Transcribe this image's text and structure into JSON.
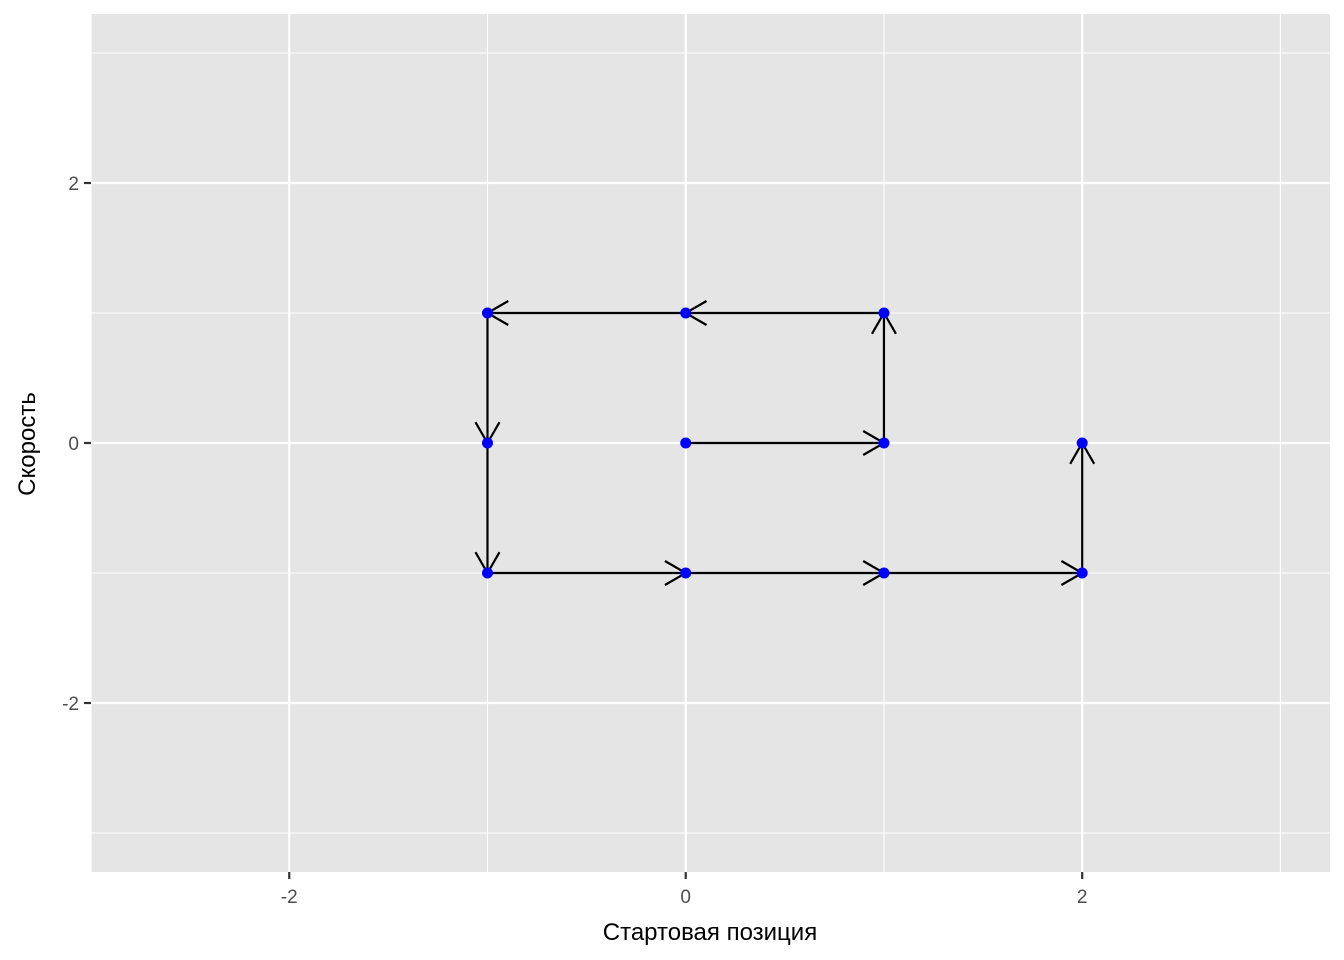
{
  "chart_data": {
    "type": "scatter",
    "title": "",
    "xlabel": "Стартовая позиция",
    "ylabel": "Скорость",
    "xlim": [
      -3.0,
      3.25
    ],
    "ylim": [
      -3.3,
      3.3
    ],
    "x_ticks": [
      -2,
      0,
      2
    ],
    "x_tick_labels": [
      "-2",
      "0",
      "2"
    ],
    "y_ticks": [
      -2,
      0,
      2
    ],
    "y_tick_labels": [
      "-2",
      "0",
      "2"
    ],
    "x_minor_ticks": [
      -3,
      -1,
      1,
      3
    ],
    "y_minor_ticks": [
      -3,
      -1,
      1,
      3
    ],
    "grid": true,
    "legend": "none",
    "points": [
      {
        "x": 0,
        "y": 0
      },
      {
        "x": 1,
        "y": 0
      },
      {
        "x": 1,
        "y": 1
      },
      {
        "x": 0,
        "y": 1
      },
      {
        "x": -1,
        "y": 1
      },
      {
        "x": -1,
        "y": 0
      },
      {
        "x": -1,
        "y": -1
      },
      {
        "x": 0,
        "y": -1
      },
      {
        "x": 1,
        "y": -1
      },
      {
        "x": 2,
        "y": -1
      },
      {
        "x": 2,
        "y": 0
      }
    ],
    "arrows": [
      {
        "from": [
          0,
          0
        ],
        "to": [
          1,
          0
        ]
      },
      {
        "from": [
          1,
          0
        ],
        "to": [
          1,
          1
        ]
      },
      {
        "from": [
          1,
          1
        ],
        "to": [
          0,
          1
        ]
      },
      {
        "from": [
          0,
          1
        ],
        "to": [
          -1,
          1
        ]
      },
      {
        "from": [
          -1,
          1
        ],
        "to": [
          -1,
          0
        ]
      },
      {
        "from": [
          -1,
          0
        ],
        "to": [
          -1,
          -1
        ]
      },
      {
        "from": [
          -1,
          -1
        ],
        "to": [
          0,
          -1
        ]
      },
      {
        "from": [
          0,
          -1
        ],
        "to": [
          1,
          -1
        ]
      },
      {
        "from": [
          1,
          -1
        ],
        "to": [
          2,
          -1
        ]
      },
      {
        "from": [
          2,
          -1
        ],
        "to": [
          2,
          0
        ]
      }
    ],
    "colors": {
      "panel_background": "#e5e5e5",
      "grid": "#ffffff",
      "point": "#0000ff",
      "arrow": "#000000"
    }
  }
}
